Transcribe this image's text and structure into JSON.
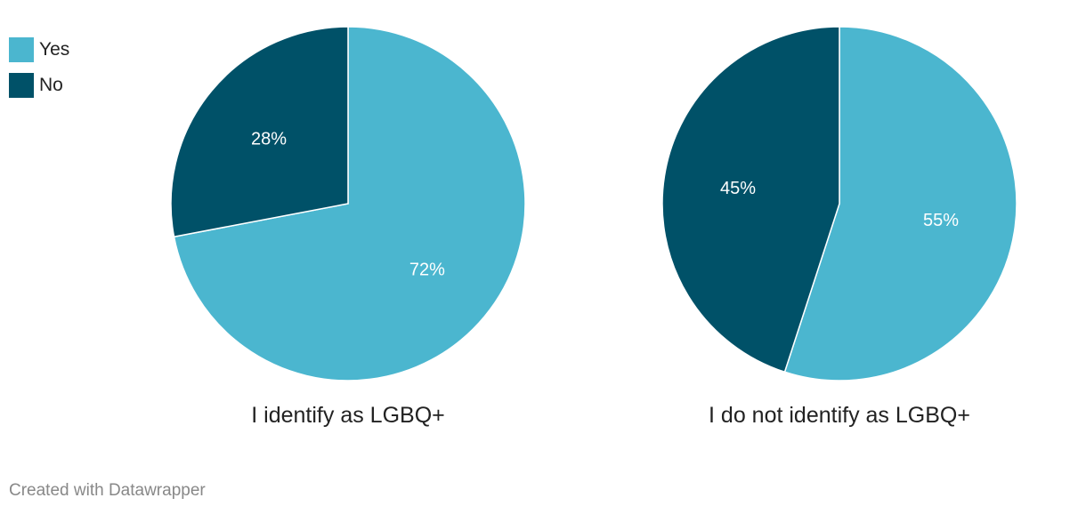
{
  "colors": {
    "yes": "#4bb6cf",
    "no": "#005168"
  },
  "legend": [
    {
      "label": "Yes",
      "color": "#4bb6cf"
    },
    {
      "label": "No",
      "color": "#005168"
    }
  ],
  "chart_data": [
    {
      "type": "pie",
      "title": "I identify as LGBQ+",
      "slices": [
        {
          "name": "Yes",
          "value": 72,
          "label": "72%"
        },
        {
          "name": "No",
          "value": 28,
          "label": "28%"
        }
      ],
      "legend_position": "top-left"
    },
    {
      "type": "pie",
      "title": "I do not identify as LGBQ+",
      "slices": [
        {
          "name": "Yes",
          "value": 55,
          "label": "55%"
        },
        {
          "name": "No",
          "value": 45,
          "label": "45%"
        }
      ],
      "legend_position": "top-left"
    }
  ],
  "footer": {
    "credit": "Created with Datawrapper"
  }
}
